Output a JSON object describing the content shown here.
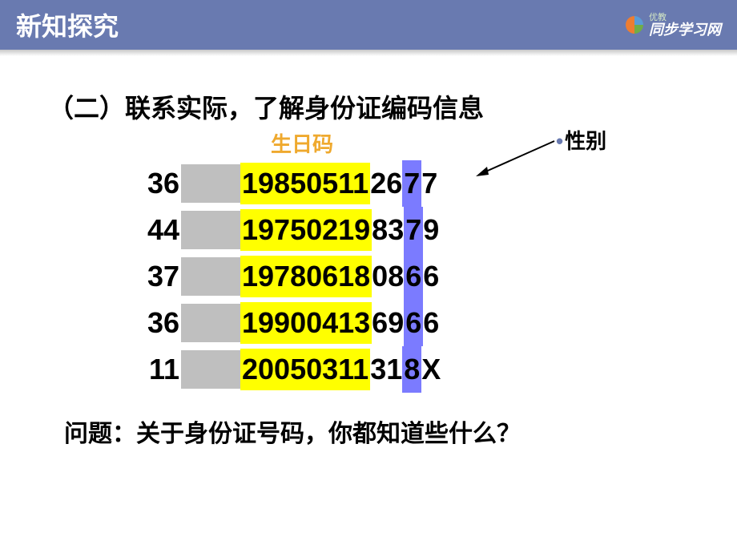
{
  "header": {
    "title": "新知探究",
    "logo_small": "优教",
    "logo_large": "同步学习网",
    "header_bg": "#697ab0"
  },
  "section_title": "（二）联系实际，了解身份证编码信息",
  "labels": {
    "birthday": "生日码",
    "gender": "性别",
    "birthday_color": "#efa92e",
    "gender_bullet_color": "#697ab0"
  },
  "highlight_colors": {
    "grey_block": "#bfbfbf",
    "birthday_bg": "#ffff00",
    "gender_bg": "#7b7bff"
  },
  "rows": [
    {
      "prefix": "36",
      "birthday": "19850511",
      "seq_before": "26",
      "gender": "7",
      "seq_after": "7"
    },
    {
      "prefix": "44",
      "birthday": "19750219",
      "seq_before": "83",
      "gender": "7",
      "seq_after": "9"
    },
    {
      "prefix": "37",
      "birthday": "19780618",
      "seq_before": "08",
      "gender": "6",
      "seq_after": "6"
    },
    {
      "prefix": "36",
      "birthday": "19900413",
      "seq_before": "69",
      "gender": "6",
      "seq_after": "6"
    },
    {
      "prefix": "11",
      "birthday": "20050311",
      "seq_before": "31",
      "gender": "8",
      "seq_after": "X"
    }
  ],
  "question": "问题：关于身份证号码，你都知道些什么？",
  "fonts": {
    "header_title_size": 32,
    "section_title_size": 32,
    "label_size": 26,
    "id_size": 36,
    "question_size": 30
  }
}
